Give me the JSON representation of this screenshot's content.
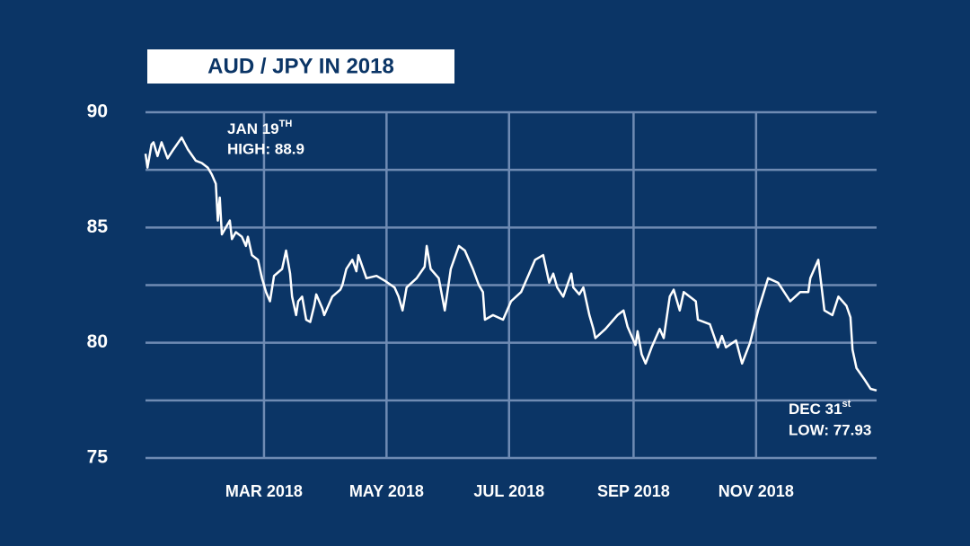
{
  "chart_data": {
    "type": "line",
    "title": "AUD / JPY IN 2018",
    "x": [
      1,
      2,
      4,
      5,
      7,
      9,
      12,
      15,
      19,
      22,
      26,
      29,
      32,
      34,
      36,
      37,
      38,
      39,
      43,
      44,
      46,
      49,
      51,
      52,
      54,
      57,
      59,
      61,
      63,
      65,
      69,
      71,
      73,
      74,
      76,
      77,
      79,
      81,
      83,
      85,
      86,
      89,
      90,
      94,
      98,
      99,
      101,
      104,
      106,
      107,
      111,
      116,
      120,
      125,
      127,
      129,
      131,
      136,
      140,
      141,
      143,
      147,
      150,
      153,
      157,
      160,
      164,
      167,
      169,
      170,
      174,
      179,
      183,
      188,
      192,
      195,
      199,
      202,
      204,
      206,
      209,
      213,
      214,
      217,
      219,
      222,
      224,
      225,
      230,
      236,
      239,
      241,
      245,
      246,
      248,
      250,
      253,
      257,
      259,
      262,
      264,
      267,
      269,
      275,
      276,
      282,
      286,
      288,
      290,
      295,
      298,
      302,
      306,
      311,
      316,
      322,
      327,
      331,
      332,
      336,
      339,
      343,
      346,
      350,
      352,
      353,
      355,
      359,
      362,
      365
    ],
    "values": [
      88.2,
      87.6,
      88.6,
      88.7,
      88.1,
      88.7,
      88.0,
      88.4,
      88.9,
      88.4,
      87.9,
      87.8,
      87.6,
      87.3,
      86.9,
      85.3,
      86.3,
      84.7,
      85.3,
      84.5,
      84.8,
      84.6,
      84.2,
      84.6,
      83.8,
      83.6,
      82.8,
      82.2,
      81.8,
      82.9,
      83.2,
      84.0,
      83.0,
      82.0,
      81.2,
      81.8,
      82.0,
      81.0,
      80.9,
      81.6,
      82.1,
      81.5,
      81.2,
      82.0,
      82.3,
      82.5,
      83.2,
      83.6,
      83.1,
      83.8,
      82.8,
      82.9,
      82.7,
      82.4,
      82.0,
      81.4,
      82.4,
      82.8,
      83.3,
      84.2,
      83.2,
      82.8,
      81.4,
      83.2,
      84.2,
      84.0,
      83.2,
      82.5,
      82.2,
      81.0,
      81.2,
      81.0,
      81.8,
      82.2,
      83.0,
      83.6,
      83.8,
      82.6,
      83.0,
      82.4,
      82.0,
      83.0,
      82.4,
      82.1,
      82.4,
      81.2,
      80.6,
      80.2,
      80.6,
      81.2,
      81.4,
      80.7,
      79.9,
      80.5,
      79.5,
      79.1,
      79.8,
      80.6,
      80.2,
      82.0,
      82.3,
      81.4,
      82.2,
      81.8,
      81.0,
      80.8,
      79.8,
      80.3,
      79.8,
      80.1,
      79.1,
      80.0,
      81.4,
      82.8,
      82.6,
      81.8,
      82.2,
      82.2,
      82.8,
      83.6,
      81.4,
      81.2,
      82.0,
      81.6,
      81.1,
      79.7,
      78.9,
      78.4,
      78.0,
      77.93
    ],
    "color": "#ffffff",
    "xlim": [
      1,
      365
    ],
    "xticks": [
      {
        "value": 60,
        "label": "MAR 2018"
      },
      {
        "value": 121,
        "label": "MAY 2018"
      },
      {
        "value": 182,
        "label": "JUL 2018"
      },
      {
        "value": 244,
        "label": "SEP 2018"
      },
      {
        "value": 305,
        "label": "NOV 2018"
      }
    ],
    "ylim": [
      75,
      90
    ],
    "yticks": [
      75,
      80,
      85,
      90
    ],
    "ygrid": [
      75,
      77.5,
      80,
      82.5,
      85,
      87.5,
      90
    ],
    "annotations": [
      {
        "text": "JAN 19",
        "sup": "TH",
        "line2": "HIGH: 88.9"
      },
      {
        "text": "DEC 31",
        "sup": "st",
        "line2": "LOW: 77.93"
      }
    ]
  }
}
